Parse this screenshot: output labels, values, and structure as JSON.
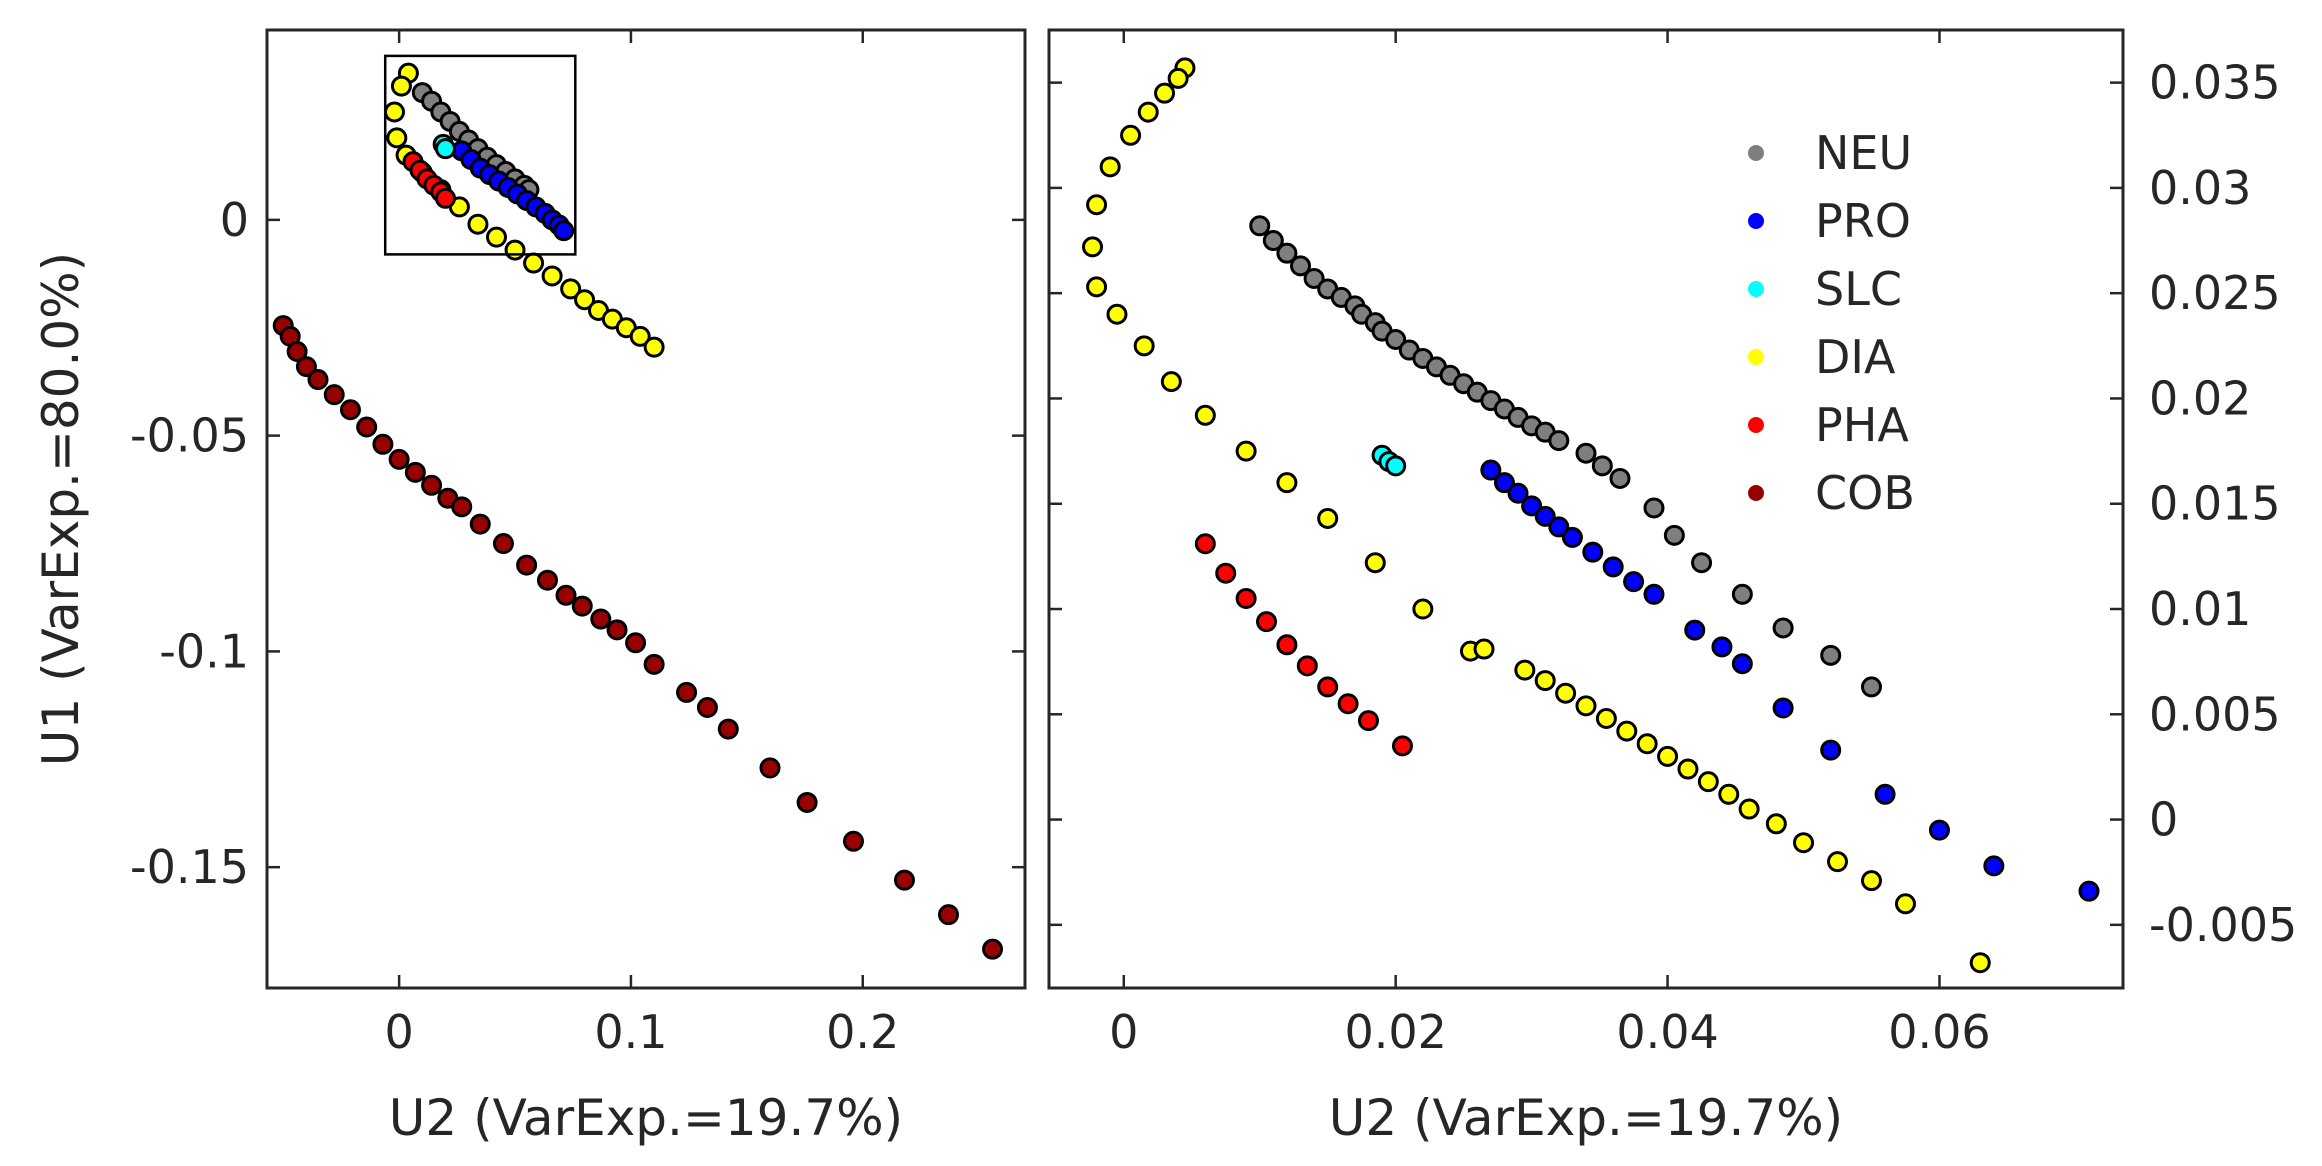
{
  "chart_data": [
    {
      "type": "scatter",
      "panel": "left",
      "title": "",
      "xlabel": "U2 (VarExp.=19.7%)",
      "ylabel": "U1 (VarExp.=80.0%)",
      "xlim": [
        -0.057,
        0.27
      ],
      "ylim": [
        -0.178,
        0.044
      ],
      "xticks": [
        0,
        0.1,
        0.2
      ],
      "xtick_labels": [
        "0",
        "0.1",
        "0.2"
      ],
      "yticks": [
        0,
        -0.05,
        -0.1,
        -0.15
      ],
      "ytick_labels": [
        "0",
        "-0.05",
        "-0.1",
        "-0.15"
      ],
      "zoom_box": {
        "x": [
          -0.006,
          0.076
        ],
        "y": [
          -0.008,
          0.038
        ]
      },
      "series": [
        {
          "name": "NEU",
          "color": "#7f7f7f",
          "x": [
            0.01,
            0.014,
            0.018,
            0.022,
            0.026,
            0.03,
            0.034,
            0.038,
            0.042,
            0.046,
            0.05,
            0.054,
            0.056
          ],
          "y": [
            0.0295,
            0.0275,
            0.025,
            0.0228,
            0.0205,
            0.0185,
            0.0165,
            0.0145,
            0.0128,
            0.0112,
            0.0095,
            0.008,
            0.007
          ]
        },
        {
          "name": "PRO",
          "color": "#0000ff",
          "x": [
            0.027,
            0.031,
            0.035,
            0.039,
            0.043,
            0.047,
            0.051,
            0.055,
            0.059,
            0.063,
            0.066,
            0.069,
            0.071
          ],
          "y": [
            0.016,
            0.014,
            0.012,
            0.0105,
            0.009,
            0.0075,
            0.006,
            0.0045,
            0.003,
            0.0015,
            0.0,
            -0.0012,
            -0.0025
          ]
        },
        {
          "name": "SLC",
          "color": "#00ffff",
          "x": [
            0.019,
            0.02
          ],
          "y": [
            0.0175,
            0.0165
          ]
        },
        {
          "name": "DIA",
          "color": "#ffff00",
          "x": [
            0.004,
            0.001,
            -0.002,
            -0.001,
            0.003,
            0.01,
            0.018,
            0.026,
            0.034,
            0.042,
            0.05,
            0.058,
            0.066,
            0.074,
            0.08,
            0.086,
            0.092,
            0.098,
            0.104,
            0.11
          ],
          "y": [
            0.034,
            0.031,
            0.025,
            0.019,
            0.015,
            0.011,
            0.007,
            0.003,
            -0.001,
            -0.004,
            -0.007,
            -0.01,
            -0.013,
            -0.016,
            -0.0185,
            -0.021,
            -0.023,
            -0.025,
            -0.027,
            -0.0295
          ]
        },
        {
          "name": "PHA",
          "color": "#ff0000",
          "x": [
            0.006,
            0.009,
            0.012,
            0.015,
            0.018,
            0.02
          ],
          "y": [
            0.0135,
            0.0115,
            0.0095,
            0.008,
            0.0065,
            0.005
          ]
        },
        {
          "name": "COB",
          "color": "#990000",
          "x": [
            -0.05,
            -0.047,
            -0.044,
            -0.04,
            -0.035,
            -0.028,
            -0.021,
            -0.014,
            -0.007,
            0.0,
            0.007,
            0.014,
            0.021,
            0.027,
            0.035,
            0.045,
            0.055,
            0.064,
            0.072,
            0.079,
            0.087,
            0.094,
            0.102,
            0.11,
            0.124,
            0.133,
            0.142,
            0.16,
            0.176,
            0.196,
            0.218,
            0.237,
            0.256
          ],
          "y": [
            -0.0245,
            -0.027,
            -0.0305,
            -0.034,
            -0.037,
            -0.0405,
            -0.044,
            -0.048,
            -0.052,
            -0.0555,
            -0.0585,
            -0.0615,
            -0.0645,
            -0.0665,
            -0.0705,
            -0.075,
            -0.08,
            -0.0835,
            -0.087,
            -0.0895,
            -0.0925,
            -0.095,
            -0.098,
            -0.103,
            -0.1095,
            -0.113,
            -0.118,
            -0.127,
            -0.135,
            -0.144,
            -0.153,
            -0.161,
            -0.169
          ]
        }
      ]
    },
    {
      "type": "scatter",
      "panel": "right",
      "title": "",
      "xlabel": "U2 (VarExp.=19.7%)",
      "ylabel": "",
      "xlim": [
        -0.0055,
        0.0735
      ],
      "ylim": [
        -0.008,
        0.0375
      ],
      "xticks": [
        0,
        0.02,
        0.04,
        0.06
      ],
      "xtick_labels": [
        "0",
        "0.02",
        "0.04",
        "0.06"
      ],
      "yticks": [
        -0.005,
        0,
        0.005,
        0.01,
        0.015,
        0.02,
        0.025,
        0.03,
        0.035
      ],
      "ytick_labels": [
        "-0.005",
        "0",
        "0.005",
        "0.01",
        "0.015",
        "0.02",
        "0.025",
        "0.03",
        "0.035"
      ],
      "legend": {
        "location": "top-right",
        "entries": [
          "NEU",
          "PRO",
          "SLC",
          "DIA",
          "PHA",
          "COB"
        ]
      },
      "series": [
        {
          "name": "NEU",
          "color": "#7f7f7f",
          "x": [
            0.01,
            0.011,
            0.012,
            0.013,
            0.014,
            0.015,
            0.016,
            0.017,
            0.0175,
            0.0185,
            0.019,
            0.02,
            0.021,
            0.022,
            0.023,
            0.024,
            0.025,
            0.026,
            0.027,
            0.028,
            0.029,
            0.03,
            0.031,
            0.032,
            0.034,
            0.0352,
            0.0365,
            0.039,
            0.0405,
            0.0425,
            0.0455,
            0.0485,
            0.052,
            0.055
          ],
          "y": [
            0.0282,
            0.0275,
            0.0269,
            0.0263,
            0.0257,
            0.0252,
            0.0248,
            0.0244,
            0.024,
            0.0236,
            0.0232,
            0.0228,
            0.0223,
            0.0219,
            0.0215,
            0.0211,
            0.0207,
            0.0203,
            0.0199,
            0.0195,
            0.0191,
            0.0187,
            0.0184,
            0.018,
            0.0174,
            0.0168,
            0.0162,
            0.0148,
            0.0135,
            0.0122,
            0.0107,
            0.0091,
            0.0078,
            0.0063
          ]
        },
        {
          "name": "PRO",
          "color": "#0000ff",
          "x": [
            0.027,
            0.028,
            0.029,
            0.03,
            0.031,
            0.032,
            0.033,
            0.0345,
            0.036,
            0.0375,
            0.039,
            0.042,
            0.044,
            0.0455,
            0.0485,
            0.052,
            0.056,
            0.06,
            0.064,
            0.071
          ],
          "y": [
            0.0166,
            0.016,
            0.0155,
            0.0149,
            0.0144,
            0.0139,
            0.0134,
            0.0127,
            0.012,
            0.0113,
            0.0107,
            0.009,
            0.0082,
            0.0074,
            0.0053,
            0.0033,
            0.0012,
            -0.0005,
            -0.0022,
            -0.0034
          ]
        },
        {
          "name": "SLC",
          "color": "#00ffff",
          "x": [
            0.019,
            0.0195,
            0.02
          ],
          "y": [
            0.0173,
            0.017,
            0.0168
          ]
        },
        {
          "name": "DIA",
          "color": "#ffff00",
          "x": [
            0.0045,
            0.004,
            0.003,
            0.0018,
            0.0005,
            -0.001,
            -0.002,
            -0.0023,
            -0.002,
            -0.0005,
            0.0015,
            0.0035,
            0.006,
            0.009,
            0.012,
            0.015,
            0.0185,
            0.022,
            0.0255,
            0.0265,
            0.0295,
            0.031,
            0.0325,
            0.034,
            0.0355,
            0.037,
            0.0385,
            0.04,
            0.0415,
            0.043,
            0.0445,
            0.046,
            0.048,
            0.05,
            0.0525,
            0.055,
            0.0575,
            0.063
          ],
          "y": [
            0.0357,
            0.0352,
            0.0345,
            0.0336,
            0.0325,
            0.031,
            0.0292,
            0.0272,
            0.0253,
            0.024,
            0.0225,
            0.0208,
            0.0192,
            0.0175,
            0.016,
            0.0143,
            0.0122,
            0.01,
            0.008,
            0.0081,
            0.0071,
            0.0066,
            0.006,
            0.0054,
            0.0048,
            0.0042,
            0.0036,
            0.003,
            0.0024,
            0.0018,
            0.0012,
            0.0005,
            -0.0002,
            -0.0011,
            -0.002,
            -0.0029,
            -0.004,
            -0.0068
          ]
        },
        {
          "name": "PHA",
          "color": "#ff0000",
          "x": [
            0.006,
            0.0075,
            0.009,
            0.0105,
            0.012,
            0.0135,
            0.015,
            0.0165,
            0.018,
            0.0205
          ],
          "y": [
            0.0131,
            0.0117,
            0.0105,
            0.0094,
            0.0083,
            0.0073,
            0.0063,
            0.0055,
            0.0047,
            0.0035
          ]
        }
      ]
    }
  ]
}
